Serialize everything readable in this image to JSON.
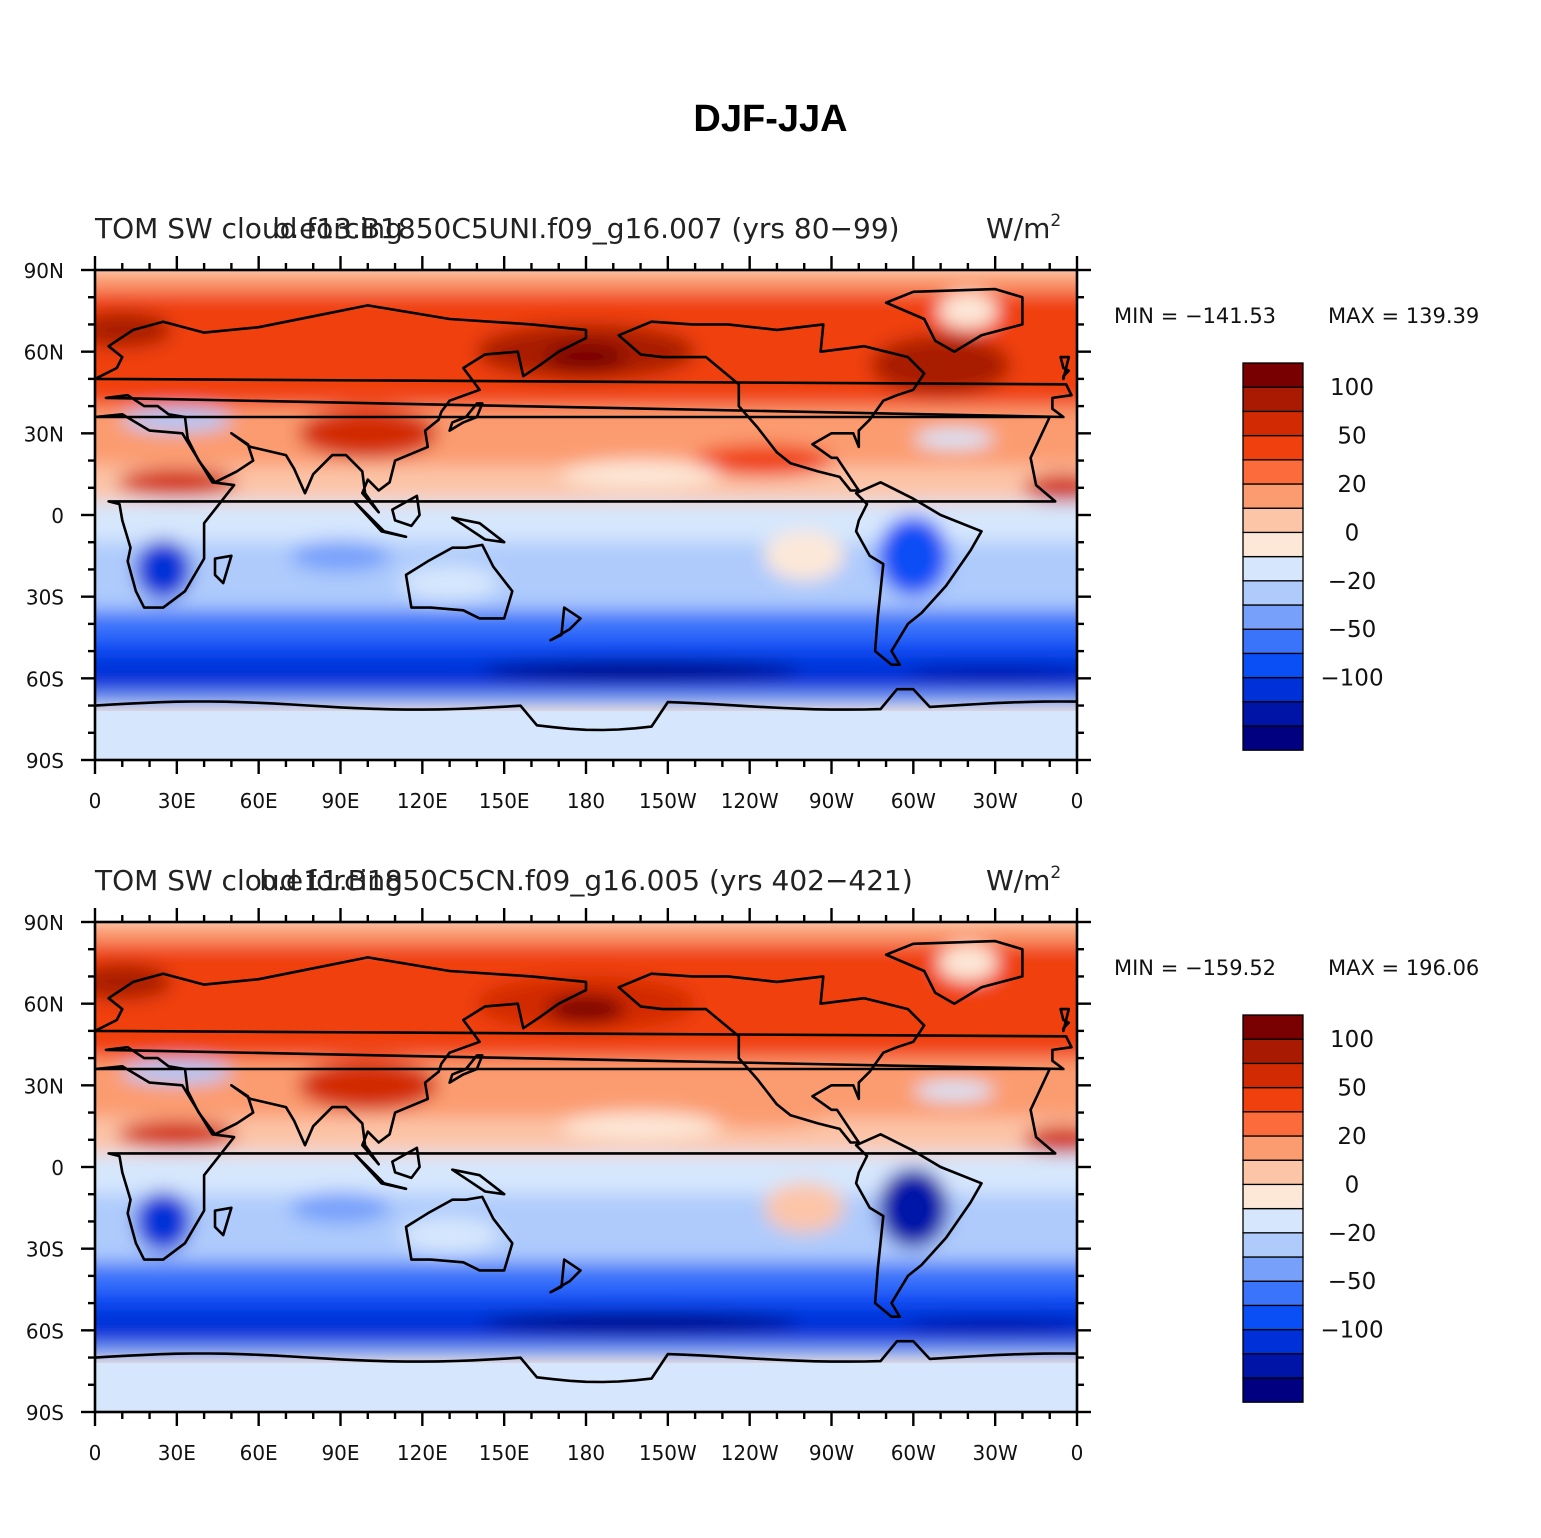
{
  "figure_title": "DJF-JJA",
  "chart_data": [
    {
      "type": "heatmap",
      "name": "top",
      "title_left": "TOM SW cloud forcing",
      "title_center": "b.e13.B1850C5UNI.f09_g16.007 (yrs 80−99)",
      "units": "W/m",
      "units_exp": "2",
      "min_label": "MIN = −141.53",
      "max_label": "MAX = 139.39",
      "min": -141.53,
      "max": 139.39
    },
    {
      "type": "heatmap",
      "name": "bottom",
      "title_left": "TOM SW cloud forcing",
      "title_center": "b.e11.B1850C5CN.f09_g16.005 (yrs 402−421)",
      "units": "W/m",
      "units_exp": "2",
      "min_label": "MIN = −159.52",
      "max_label": "MAX = 196.06",
      "min": -159.52,
      "max": 196.06
    }
  ],
  "x_ticks": [
    "0",
    "30E",
    "60E",
    "90E",
    "120E",
    "150E",
    "180",
    "150W",
    "120W",
    "90W",
    "60W",
    "30W",
    "0"
  ],
  "y_ticks": [
    "90N",
    "60N",
    "30N",
    "0",
    "30S",
    "60S",
    "90S"
  ],
  "colorbar": {
    "colors": [
      "#000080",
      "#0015a8",
      "#0030d8",
      "#0a4ef6",
      "#3a74fa",
      "#77a0fb",
      "#aecbfc",
      "#d6e7fd",
      "#fde8d8",
      "#fcc5a8",
      "#fb9b70",
      "#fb6b3c",
      "#f0400e",
      "#d22b04",
      "#a81a02",
      "#780000"
    ],
    "labels": [
      {
        "text": "−100",
        "boundary": 3
      },
      {
        "text": "−50",
        "boundary": 5
      },
      {
        "text": "−20",
        "boundary": 7
      },
      {
        "text": "0",
        "boundary": 9
      },
      {
        "text": "20",
        "boundary": 11
      },
      {
        "text": "50",
        "boundary": 13
      },
      {
        "text": "100",
        "boundary": 15
      }
    ]
  },
  "field_colors": {
    "ocean_background": "#fde8d8",
    "antarctic": "#d6e7fd",
    "coast": "#000000"
  }
}
